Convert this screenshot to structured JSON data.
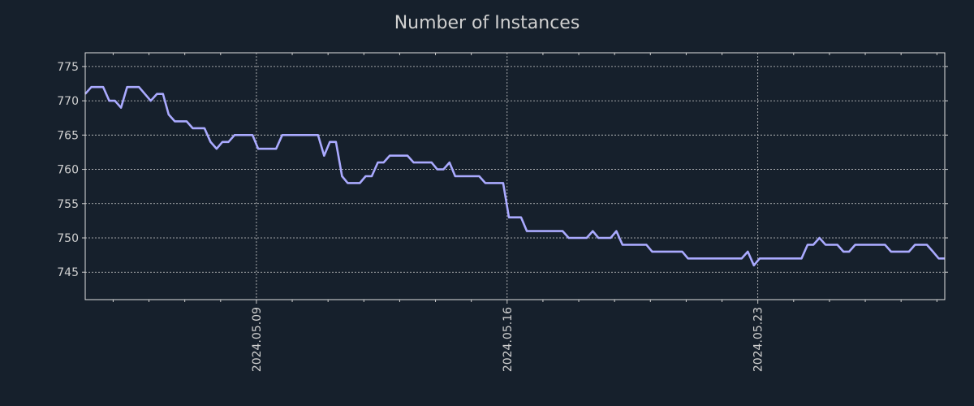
{
  "colors": {
    "background": "#16202c",
    "line": "#aaaaff",
    "grid": "#cccccc",
    "text": "#d0d0d0"
  },
  "chart_data": {
    "type": "line",
    "title": "Number of Instances",
    "xlabel": "",
    "ylabel": "",
    "x_units": "day of May 2024",
    "xlim": [
      4.22,
      28.22
    ],
    "ylim": [
      741,
      777
    ],
    "grid": true,
    "x_ticks": [
      {
        "value": 9,
        "label": "2024.05.09"
      },
      {
        "value": 16,
        "label": "2024.05.16"
      },
      {
        "value": 23,
        "label": "2024.05.23"
      }
    ],
    "x_minor_ticks": [
      5,
      6,
      7,
      8,
      10,
      11,
      12,
      13,
      14,
      15,
      17,
      18,
      19,
      20,
      21,
      22,
      24,
      25,
      26,
      27,
      28
    ],
    "y_ticks": [
      {
        "value": 745,
        "label": "745"
      },
      {
        "value": 750,
        "label": "750"
      },
      {
        "value": 755,
        "label": "755"
      },
      {
        "value": 760,
        "label": "760"
      },
      {
        "value": 765,
        "label": "765"
      },
      {
        "value": 770,
        "label": "770"
      },
      {
        "value": 775,
        "label": "775"
      }
    ],
    "series": [
      {
        "name": "Number of Instances",
        "x": [
          4.22,
          4.39,
          4.72,
          4.89,
          5.05,
          5.22,
          5.39,
          5.72,
          6.05,
          6.22,
          6.39,
          6.55,
          6.72,
          7.05,
          7.22,
          7.55,
          7.72,
          7.89,
          8.05,
          8.22,
          8.39,
          8.89,
          9.05,
          9.55,
          9.72,
          10.72,
          10.89,
          11.05,
          11.22,
          11.39,
          11.55,
          11.89,
          12.05,
          12.22,
          12.39,
          12.55,
          12.72,
          13.22,
          13.39,
          13.89,
          14.05,
          14.22,
          14.39,
          14.55,
          15.22,
          15.39,
          15.89,
          16.05,
          16.39,
          16.55,
          17.55,
          17.72,
          18.22,
          18.39,
          18.55,
          18.89,
          19.05,
          19.22,
          19.89,
          20.05,
          20.89,
          21.05,
          22.55,
          22.72,
          22.89,
          23.05,
          24.22,
          24.39,
          24.55,
          24.72,
          24.89,
          25.22,
          25.39,
          25.55,
          25.72,
          26.55,
          26.72,
          27.22,
          27.39,
          27.72,
          27.89,
          28.05,
          28.22
        ],
        "y": [
          771,
          772,
          772,
          770,
          770,
          769,
          772,
          772,
          770,
          771,
          771,
          768,
          767,
          767,
          766,
          766,
          764,
          763,
          764,
          764,
          765,
          765,
          763,
          763,
          765,
          765,
          762,
          764,
          764,
          759,
          758,
          758,
          759,
          759,
          761,
          761,
          762,
          762,
          761,
          761,
          760,
          760,
          761,
          759,
          759,
          758,
          758,
          753,
          753,
          751,
          751,
          750,
          750,
          751,
          750,
          750,
          751,
          749,
          749,
          748,
          748,
          747,
          747,
          748,
          746,
          747,
          747,
          749,
          749,
          750,
          749,
          749,
          748,
          748,
          749,
          749,
          748,
          748,
          749,
          749,
          748,
          747,
          747
        ]
      }
    ]
  }
}
